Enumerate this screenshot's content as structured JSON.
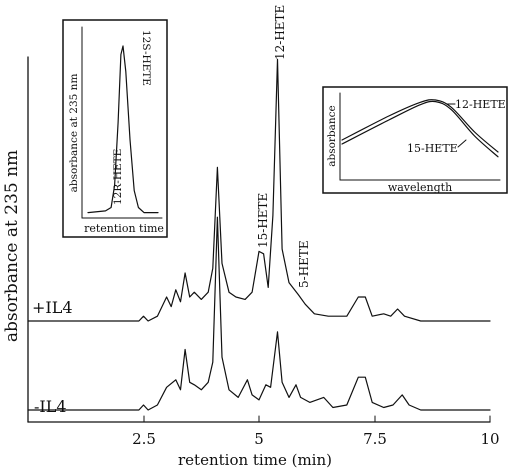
{
  "chart_data": {
    "type": "line",
    "ylabel": "absorbance at 235 nm",
    "xlabel": "retention time (min)",
    "xlim": [
      0,
      10
    ],
    "x_ticks": [
      2.5,
      5,
      7.5,
      10
    ],
    "x_tick_labels": [
      "2.5",
      "5",
      "7.5",
      "10"
    ],
    "grid": false,
    "series": [
      {
        "name": "+IL4",
        "baseline": 0.02,
        "points": [
          [
            0,
            0.02
          ],
          [
            2.4,
            0.02
          ],
          [
            2.5,
            0.06
          ],
          [
            2.6,
            0.02
          ],
          [
            2.8,
            0.06
          ],
          [
            3.0,
            0.22
          ],
          [
            3.1,
            0.14
          ],
          [
            3.2,
            0.28
          ],
          [
            3.3,
            0.18
          ],
          [
            3.4,
            0.42
          ],
          [
            3.5,
            0.22
          ],
          [
            3.6,
            0.26
          ],
          [
            3.75,
            0.2
          ],
          [
            3.9,
            0.26
          ],
          [
            4.0,
            0.46
          ],
          [
            4.1,
            1.3
          ],
          [
            4.2,
            0.5
          ],
          [
            4.35,
            0.26
          ],
          [
            4.5,
            0.22
          ],
          [
            4.7,
            0.2
          ],
          [
            4.85,
            0.26
          ],
          [
            5.0,
            0.6
          ],
          [
            5.1,
            0.58
          ],
          [
            5.2,
            0.3
          ],
          [
            5.3,
            0.9
          ],
          [
            5.4,
            2.2
          ],
          [
            5.5,
            0.62
          ],
          [
            5.65,
            0.34
          ],
          [
            5.85,
            0.24
          ],
          [
            6.0,
            0.16
          ],
          [
            6.2,
            0.08
          ],
          [
            6.5,
            0.06
          ],
          [
            6.9,
            0.06
          ],
          [
            7.15,
            0.22
          ],
          [
            7.3,
            0.22
          ],
          [
            7.45,
            0.06
          ],
          [
            7.7,
            0.08
          ],
          [
            7.85,
            0.06
          ],
          [
            8.0,
            0.12
          ],
          [
            8.15,
            0.06
          ],
          [
            8.5,
            0.02
          ],
          [
            10,
            0.02
          ]
        ]
      },
      {
        "name": "-IL4",
        "baseline": 0.02,
        "points": [
          [
            0,
            0.02
          ],
          [
            2.4,
            0.02
          ],
          [
            2.5,
            0.06
          ],
          [
            2.6,
            0.02
          ],
          [
            2.8,
            0.06
          ],
          [
            3.0,
            0.2
          ],
          [
            3.2,
            0.26
          ],
          [
            3.3,
            0.18
          ],
          [
            3.4,
            0.5
          ],
          [
            3.5,
            0.24
          ],
          [
            3.6,
            0.22
          ],
          [
            3.75,
            0.18
          ],
          [
            3.9,
            0.24
          ],
          [
            4.0,
            0.4
          ],
          [
            4.1,
            1.55
          ],
          [
            4.2,
            0.44
          ],
          [
            4.35,
            0.18
          ],
          [
            4.55,
            0.12
          ],
          [
            4.75,
            0.26
          ],
          [
            4.85,
            0.14
          ],
          [
            5.0,
            0.1
          ],
          [
            5.15,
            0.22
          ],
          [
            5.25,
            0.2
          ],
          [
            5.4,
            0.64
          ],
          [
            5.5,
            0.24
          ],
          [
            5.65,
            0.12
          ],
          [
            5.8,
            0.22
          ],
          [
            5.9,
            0.12
          ],
          [
            6.1,
            0.08
          ],
          [
            6.4,
            0.12
          ],
          [
            6.6,
            0.04
          ],
          [
            6.9,
            0.06
          ],
          [
            7.15,
            0.28
          ],
          [
            7.3,
            0.28
          ],
          [
            7.45,
            0.08
          ],
          [
            7.7,
            0.04
          ],
          [
            7.9,
            0.06
          ],
          [
            8.1,
            0.14
          ],
          [
            8.25,
            0.06
          ],
          [
            8.5,
            0.02
          ],
          [
            10,
            0.02
          ]
        ]
      }
    ],
    "trace_labels": [
      "+IL4",
      "-IL4"
    ],
    "peak_labels": [
      {
        "text": "12-HETE",
        "x": 5.4
      },
      {
        "text": "15-HETE",
        "x": 5.1
      },
      {
        "text": "5-HETE",
        "x": 5.9
      }
    ],
    "insets": [
      {
        "type": "line",
        "position": "top-left",
        "xlabel": "retention time",
        "ylabel": "absorbance at 235 nm",
        "annotations": [
          "12S-HETE",
          "12R-HETE"
        ],
        "series": [
          {
            "name": "12S-HETE",
            "points": [
              [
                0,
                0.02
              ],
              [
                0.25,
                0.03
              ],
              [
                0.33,
                0.05
              ],
              [
                0.38,
                0.18
              ],
              [
                0.43,
                0.55
              ],
              [
                0.47,
                0.95
              ],
              [
                0.5,
                1.0
              ],
              [
                0.54,
                0.85
              ],
              [
                0.6,
                0.45
              ],
              [
                0.66,
                0.15
              ],
              [
                0.72,
                0.05
              ],
              [
                0.8,
                0.02
              ],
              [
                1,
                0.02
              ]
            ]
          }
        ]
      },
      {
        "type": "line",
        "position": "top-right",
        "xlabel": "wavelength",
        "ylabel": "absorbance",
        "series": [
          {
            "name": "12-HETE",
            "points": [
              [
                0,
                0.45
              ],
              [
                0.3,
                0.75
              ],
              [
                0.5,
                0.92
              ],
              [
                0.6,
                0.95
              ],
              [
                0.7,
                0.86
              ],
              [
                0.85,
                0.55
              ],
              [
                1,
                0.3
              ]
            ]
          },
          {
            "name": "15-HETE",
            "points": [
              [
                0,
                0.4
              ],
              [
                0.3,
                0.7
              ],
              [
                0.5,
                0.89
              ],
              [
                0.6,
                0.93
              ],
              [
                0.7,
                0.83
              ],
              [
                0.85,
                0.5
              ],
              [
                1,
                0.24
              ]
            ]
          }
        ]
      }
    ]
  }
}
